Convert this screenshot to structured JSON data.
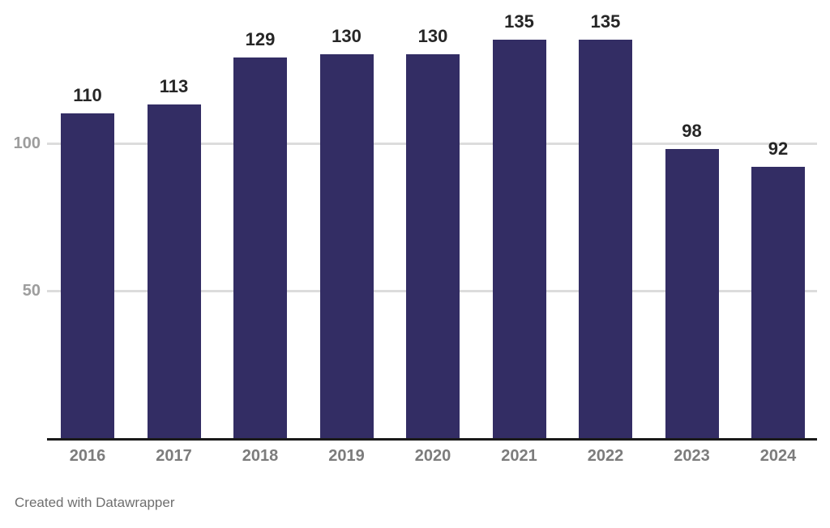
{
  "chart_data": {
    "type": "bar",
    "title": "",
    "xlabel": "",
    "ylabel": "",
    "categories": [
      "2016",
      "2017",
      "2018",
      "2019",
      "2020",
      "2021",
      "2022",
      "2023",
      "2024"
    ],
    "values": [
      110,
      113,
      129,
      130,
      130,
      135,
      135,
      98,
      92
    ],
    "yticks": [
      50,
      100
    ],
    "ylim": [
      0,
      148.5
    ],
    "grid": true,
    "legend": false,
    "colors": {
      "bar": "#332d64",
      "value_label": "#262626",
      "xtick_label": "#7c7c7c",
      "ytick_label": "#9d9d9d",
      "gridline": "#dcdcdc",
      "baseline": "#1a1a1a",
      "background": "#ffffff",
      "attribution": "#6f6f6f"
    }
  },
  "footer": {
    "attribution": "Created with Datawrapper"
  }
}
